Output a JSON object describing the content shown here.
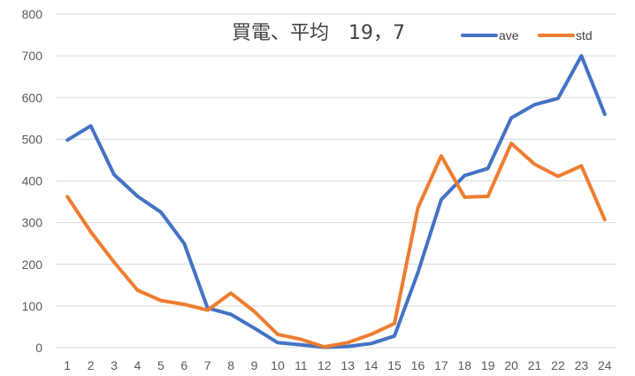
{
  "chart_data": {
    "type": "line",
    "title": "買電、平均　19，7",
    "xlabel": "",
    "ylabel": "",
    "categories": [
      "1",
      "2",
      "3",
      "4",
      "5",
      "6",
      "7",
      "8",
      "9",
      "10",
      "11",
      "12",
      "13",
      "14",
      "15",
      "16",
      "17",
      "18",
      "19",
      "20",
      "21",
      "22",
      "23",
      "24"
    ],
    "ylim": [
      0,
      800
    ],
    "yticks": [
      "0",
      "100",
      "200",
      "300",
      "400",
      "500",
      "600",
      "700",
      "800"
    ],
    "grid": true,
    "legend_position": "top-right",
    "series": [
      {
        "name": "ave",
        "color": "#4472C4",
        "values": [
          498,
          532,
          415,
          363,
          325,
          250,
          95,
          80,
          47,
          12,
          7,
          1,
          3,
          10,
          28,
          180,
          355,
          413,
          430,
          551,
          583,
          598,
          700,
          560
        ]
      },
      {
        "name": "std",
        "color": "#ED7D31",
        "values": [
          362,
          278,
          205,
          138,
          113,
          104,
          90,
          131,
          87,
          32,
          20,
          2,
          12,
          32,
          58,
          335,
          460,
          361,
          363,
          490,
          440,
          411,
          436,
          307
        ]
      }
    ]
  }
}
